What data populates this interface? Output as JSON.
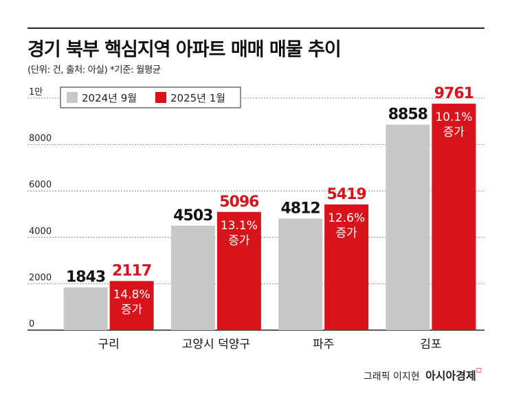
{
  "header": {
    "title": "경기 북부 핵심지역 아파트 매매 매물 추이",
    "subtitle": "(단위: 건, 출처: 아실)  *기준: 월평균"
  },
  "footer": {
    "credit": "그래픽 이지현",
    "brand": "아시아경제"
  },
  "colors": {
    "series_a": "#c8c8c8",
    "series_b": "#d7131b",
    "value_a": "#111111",
    "value_b": "#d7131b"
  },
  "chart_data": {
    "type": "bar",
    "categories": [
      "구리",
      "고양시 덕양구",
      "파주",
      "김포"
    ],
    "series": [
      {
        "name": "2024년 9월",
        "values": [
          1843,
          4503,
          4812,
          8858
        ]
      },
      {
        "name": "2025년 1월",
        "values": [
          2117,
          5096,
          5419,
          9761
        ]
      }
    ],
    "increase_labels": [
      [
        "14.8%",
        "증가"
      ],
      [
        "13.1%",
        "증가"
      ],
      [
        "12.6%",
        "증가"
      ],
      [
        "10.1%",
        "증가"
      ]
    ],
    "y_ticks": [
      {
        "value": 0,
        "label": "0"
      },
      {
        "value": 2000,
        "label": "2000"
      },
      {
        "value": 4000,
        "label": "4000"
      },
      {
        "value": 6000,
        "label": "6000"
      },
      {
        "value": 8000,
        "label": "8000"
      },
      {
        "value": 10000,
        "label": "1만"
      }
    ],
    "ylim": [
      0,
      10000
    ],
    "grid": true,
    "legend": "top-left"
  }
}
